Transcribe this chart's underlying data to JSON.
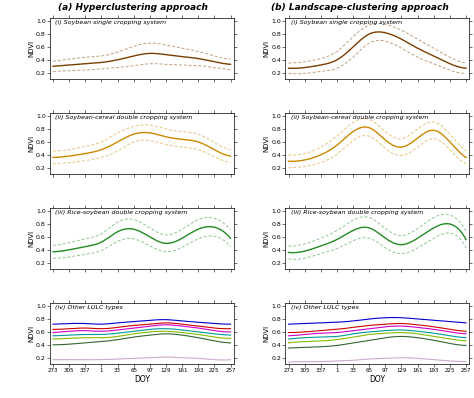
{
  "title_a": "(a) Hyperclustering approach",
  "title_b": "(b) Landscape-clustering approach",
  "xlabel": "DOY",
  "ylabel": "NDVI",
  "doy_ticks": [
    273,
    305,
    337,
    1,
    33,
    65,
    97,
    129,
    161,
    193,
    225,
    257
  ],
  "ylim": [
    0.1,
    1.05
  ],
  "yticks": [
    0.2,
    0.4,
    0.6,
    0.8,
    1.0
  ],
  "subtitles": [
    "(i) Soybean single cropping system",
    "(ii) Soybean-cereal double cropping system",
    "(iii) Rice-soybean double cropping system",
    "(iv) Other LULC types"
  ],
  "colors": {
    "soybean": "#7B3F00",
    "cereal": "#CC8800",
    "rice": "#228B22",
    "lulc_blue": "#0000CD",
    "lulc_red": "#CC0000",
    "lulc_magenta": "#CC00CC",
    "lulc_cyan": "#009999",
    "lulc_yellow_green": "#88BB00",
    "lulc_dark_green": "#336633",
    "lulc_light_purple": "#CCAACC"
  },
  "background": "#ffffff",
  "soy_a_mean": [
    0.3,
    0.32,
    0.34,
    0.36,
    0.4,
    0.46,
    0.5,
    0.48,
    0.45,
    0.42,
    0.37,
    0.33
  ],
  "soy_a_std": [
    0.08,
    0.09,
    0.1,
    0.1,
    0.12,
    0.15,
    0.16,
    0.15,
    0.13,
    0.11,
    0.09,
    0.08
  ],
  "cer_a_mean": [
    0.36,
    0.38,
    0.42,
    0.48,
    0.6,
    0.72,
    0.74,
    0.68,
    0.64,
    0.6,
    0.48,
    0.38
  ],
  "cer_a_std": [
    0.1,
    0.1,
    0.11,
    0.12,
    0.14,
    0.12,
    0.12,
    0.12,
    0.12,
    0.12,
    0.11,
    0.1
  ],
  "ric_a_mean": [
    0.37,
    0.4,
    0.45,
    0.52,
    0.68,
    0.72,
    0.6,
    0.5,
    0.58,
    0.72,
    0.75,
    0.58
  ],
  "ric_a_std": [
    0.1,
    0.11,
    0.12,
    0.13,
    0.15,
    0.15,
    0.14,
    0.13,
    0.14,
    0.15,
    0.14,
    0.13
  ],
  "soy_b_mean": [
    0.27,
    0.28,
    0.32,
    0.4,
    0.6,
    0.8,
    0.82,
    0.72,
    0.58,
    0.46,
    0.34,
    0.27
  ],
  "soy_b_std": [
    0.08,
    0.09,
    0.1,
    0.13,
    0.16,
    0.14,
    0.13,
    0.14,
    0.14,
    0.12,
    0.1,
    0.08
  ],
  "cer_b_mean": [
    0.3,
    0.32,
    0.4,
    0.55,
    0.76,
    0.82,
    0.63,
    0.52,
    0.66,
    0.78,
    0.6,
    0.36
  ],
  "cer_b_std": [
    0.1,
    0.1,
    0.12,
    0.14,
    0.14,
    0.13,
    0.13,
    0.13,
    0.14,
    0.13,
    0.12,
    0.1
  ],
  "ric_b_mean": [
    0.36,
    0.38,
    0.46,
    0.56,
    0.7,
    0.74,
    0.58,
    0.48,
    0.58,
    0.74,
    0.8,
    0.56
  ],
  "ric_b_std": [
    0.1,
    0.11,
    0.12,
    0.14,
    0.16,
    0.16,
    0.15,
    0.14,
    0.15,
    0.16,
    0.14,
    0.13
  ],
  "lulc_a": {
    "blue": [
      0.72,
      0.73,
      0.73,
      0.72,
      0.74,
      0.76,
      0.78,
      0.79,
      0.77,
      0.75,
      0.73,
      0.72
    ],
    "red": [
      0.64,
      0.65,
      0.66,
      0.65,
      0.67,
      0.7,
      0.72,
      0.74,
      0.72,
      0.69,
      0.66,
      0.65
    ],
    "magenta": [
      0.59,
      0.61,
      0.62,
      0.61,
      0.63,
      0.66,
      0.69,
      0.71,
      0.69,
      0.66,
      0.62,
      0.6
    ],
    "cyan": [
      0.54,
      0.55,
      0.56,
      0.56,
      0.58,
      0.61,
      0.64,
      0.65,
      0.63,
      0.6,
      0.57,
      0.55
    ],
    "yellow_green": [
      0.49,
      0.5,
      0.51,
      0.51,
      0.53,
      0.57,
      0.6,
      0.61,
      0.59,
      0.56,
      0.52,
      0.5
    ],
    "dark_green": [
      0.4,
      0.41,
      0.43,
      0.45,
      0.48,
      0.52,
      0.55,
      0.57,
      0.55,
      0.51,
      0.46,
      0.43
    ],
    "light_purple": [
      0.17,
      0.17,
      0.17,
      0.17,
      0.18,
      0.19,
      0.2,
      0.21,
      0.2,
      0.19,
      0.17,
      0.17
    ]
  },
  "lulc_b": {
    "blue": [
      0.72,
      0.73,
      0.74,
      0.75,
      0.77,
      0.8,
      0.82,
      0.82,
      0.8,
      0.78,
      0.76,
      0.74
    ],
    "red": [
      0.59,
      0.6,
      0.62,
      0.64,
      0.67,
      0.7,
      0.72,
      0.73,
      0.71,
      0.68,
      0.64,
      0.61
    ],
    "magenta": [
      0.54,
      0.56,
      0.58,
      0.59,
      0.62,
      0.65,
      0.68,
      0.69,
      0.67,
      0.64,
      0.6,
      0.57
    ],
    "cyan": [
      0.49,
      0.51,
      0.52,
      0.53,
      0.57,
      0.6,
      0.62,
      0.63,
      0.61,
      0.58,
      0.54,
      0.51
    ],
    "yellow_green": [
      0.43,
      0.45,
      0.46,
      0.48,
      0.52,
      0.56,
      0.58,
      0.59,
      0.57,
      0.53,
      0.49,
      0.46
    ],
    "dark_green": [
      0.35,
      0.36,
      0.37,
      0.39,
      0.43,
      0.47,
      0.51,
      0.53,
      0.51,
      0.47,
      0.42,
      0.39
    ],
    "light_purple": [
      0.13,
      0.14,
      0.14,
      0.15,
      0.16,
      0.18,
      0.19,
      0.2,
      0.19,
      0.17,
      0.15,
      0.14
    ]
  }
}
